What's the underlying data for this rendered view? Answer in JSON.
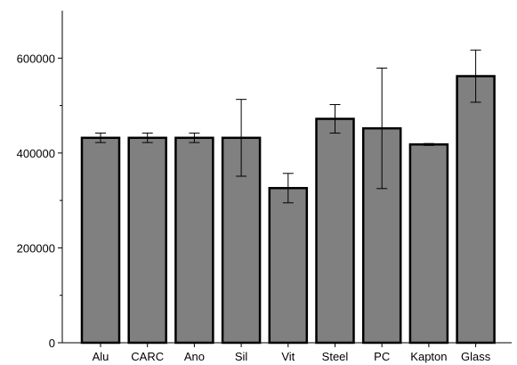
{
  "chart_data": {
    "type": "bar",
    "title": "",
    "xlabel": "",
    "ylabel": "",
    "ylim": [
      0,
      700000
    ],
    "yticks": [
      0,
      200000,
      400000,
      600000
    ],
    "ytick_labels": [
      "0",
      "200000",
      "400000",
      "600000"
    ],
    "grid": false,
    "categories": [
      "Alu",
      "CARC",
      "Ano",
      "Sil",
      "Vit",
      "Steel",
      "PC",
      "Kapton",
      "Glass"
    ],
    "series": [
      {
        "values": [
          432000,
          432000,
          432000,
          432000,
          326000,
          472000,
          452000,
          418000,
          562000
        ],
        "errors": [
          10000,
          10000,
          10000,
          81000,
          31000,
          30000,
          127000,
          2000,
          55000
        ],
        "color": "#808080"
      }
    ]
  }
}
